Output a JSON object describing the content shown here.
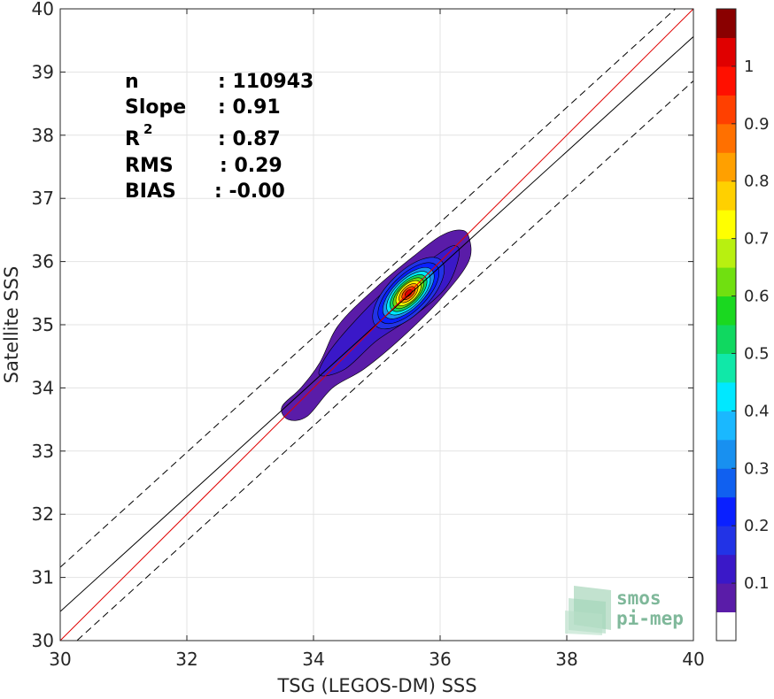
{
  "chart_data": {
    "type": "heatmap",
    "xlabel": "TSG (LEGOS-DM) SSS",
    "ylabel": "Satellite SSS",
    "xlim": [
      30,
      40
    ],
    "ylim": [
      30,
      40
    ],
    "xticks": [
      "30",
      "32",
      "34",
      "36",
      "38",
      "40"
    ],
    "yticks": [
      "30",
      "31",
      "32",
      "33",
      "34",
      "35",
      "36",
      "37",
      "38",
      "39",
      "40"
    ],
    "grid": true,
    "stats": {
      "n_label": "n",
      "n_value": ": 110943",
      "slope_label": "Slope",
      "slope_value": ": 0.91",
      "r2_label": "R",
      "r2_sup": "2",
      "r2_value": ": 0.87",
      "rms_label": "RMS",
      "rms_value": ": 0.29",
      "bias_label": "BIAS",
      "bias_value": ": -0.00"
    },
    "lines": {
      "identity": {
        "points": [
          [
            30,
            30
          ],
          [
            40,
            40
          ]
        ],
        "color": "#e00000"
      },
      "regression": {
        "points": [
          [
            30,
            30.46
          ],
          [
            40,
            39.56
          ]
        ],
        "color": "#000000"
      },
      "upper_bound": {
        "points": [
          [
            30,
            31.16
          ],
          [
            40,
            40.26
          ]
        ],
        "color": "#000000",
        "dash": true
      },
      "lower_bound": {
        "points": [
          [
            30,
            29.76
          ],
          [
            40,
            38.86
          ]
        ],
        "color": "#000000",
        "dash": true
      }
    },
    "density": {
      "center": [
        35.5,
        35.5
      ],
      "levels": [
        {
          "level": 0.05,
          "shape": [
            [
              33.5,
              33.7
            ],
            [
              33.6,
              33.5
            ],
            [
              33.9,
              33.55
            ],
            [
              34.3,
              34.0
            ],
            [
              34.8,
              34.3
            ],
            [
              35.4,
              34.8
            ],
            [
              36.0,
              35.4
            ],
            [
              36.45,
              36.0
            ],
            [
              36.45,
              36.4
            ],
            [
              36.3,
              36.5
            ],
            [
              36.0,
              36.4
            ],
            [
              35.6,
              36.1
            ],
            [
              35.0,
              35.6
            ],
            [
              34.4,
              35.0
            ],
            [
              34.1,
              34.4
            ],
            [
              33.8,
              34.0
            ]
          ]
        },
        {
          "level": 0.1,
          "shape": [
            [
              34.1,
              34.2
            ],
            [
              34.5,
              34.3
            ],
            [
              35.0,
              34.75
            ],
            [
              35.6,
              35.15
            ],
            [
              36.1,
              35.6
            ],
            [
              36.3,
              36.1
            ],
            [
              36.2,
              36.25
            ],
            [
              35.8,
              36.0
            ],
            [
              35.2,
              35.6
            ],
            [
              34.6,
              35.0
            ],
            [
              34.2,
              34.5
            ]
          ]
        },
        {
          "level": 0.15,
          "shape": "ellipse",
          "rx": 0.73,
          "ry": 0.33
        },
        {
          "level": 0.2,
          "shape": "ellipse",
          "rx": 0.62,
          "ry": 0.28
        },
        {
          "level": 0.3,
          "shape": "ellipse",
          "rx": 0.52,
          "ry": 0.24
        },
        {
          "level": 0.4,
          "shape": "ellipse",
          "rx": 0.44,
          "ry": 0.21
        },
        {
          "level": 0.5,
          "shape": "ellipse",
          "rx": 0.37,
          "ry": 0.18
        },
        {
          "level": 0.6,
          "shape": "ellipse",
          "rx": 0.31,
          "ry": 0.15
        },
        {
          "level": 0.7,
          "shape": "ellipse",
          "rx": 0.25,
          "ry": 0.13
        },
        {
          "level": 0.8,
          "shape": "ellipse",
          "rx": 0.19,
          "ry": 0.1
        },
        {
          "level": 0.9,
          "shape": "ellipse",
          "rx": 0.13,
          "ry": 0.07
        },
        {
          "level": 1.0,
          "shape": "ellipse",
          "rx": 0.07,
          "ry": 0.04
        }
      ]
    },
    "colorbar": {
      "ticks": [
        "0.1",
        "0.2",
        "0.3",
        "0.4",
        "0.5",
        "0.6",
        "0.7",
        "0.8",
        "0.9",
        "1"
      ],
      "colors": [
        "#ffffff",
        "#5a1ca8",
        "#3a18c8",
        "#2233e6",
        "#0a20ff",
        "#1060f0",
        "#1890f0",
        "#1ab8ff",
        "#00e8ff",
        "#10e8a8",
        "#10d860",
        "#1ad820",
        "#70e010",
        "#b8f010",
        "#ffff00",
        "#ffd000",
        "#ffa000",
        "#ff7000",
        "#ff4000",
        "#ff1000",
        "#e00000",
        "#8a0000"
      ]
    }
  },
  "watermark": {
    "line1": "smos",
    "line2": "pi-mep"
  }
}
